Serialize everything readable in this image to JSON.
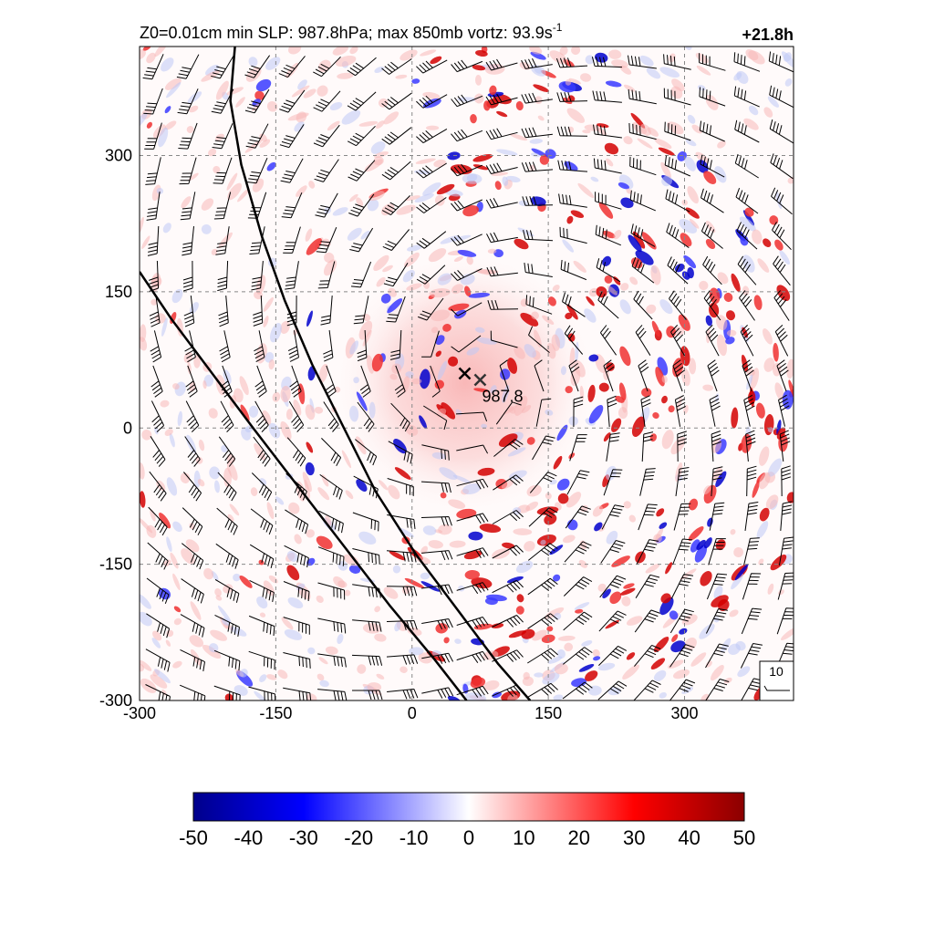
{
  "chart_data": {
    "type": "heatmap",
    "title": "Z0=0.01cm  min SLP: 987.8hPa; max 850mb vortz:  93.9s",
    "title_superscript": "-1",
    "time_label": "+21.8h",
    "xlim": [
      -300,
      420
    ],
    "ylim": [
      -300,
      420
    ],
    "x_ticks": [
      -300,
      -150,
      0,
      150,
      300
    ],
    "y_ticks": [
      -300,
      -150,
      0,
      150,
      300
    ],
    "x_tick_labels": [
      "-300",
      "-150",
      "0",
      "150",
      "300"
    ],
    "y_tick_labels": [
      "-300",
      "-150",
      "0",
      "150",
      "300"
    ],
    "grid": true,
    "grid_style": "dashed",
    "field": {
      "name": "vorticity",
      "colormap": [
        "#00008b",
        "#0000ff",
        "#ffffff",
        "#ff0000",
        "#8b0000"
      ],
      "range": [
        -50,
        50
      ]
    },
    "colorbar": {
      "ticks": [
        -50,
        -40,
        -30,
        -20,
        -10,
        0,
        10,
        20,
        30,
        40,
        50
      ],
      "tick_labels": [
        "-50",
        "-40",
        "-30",
        "-20",
        "-10",
        "0",
        "10",
        "20",
        "30",
        "40",
        "50"
      ]
    },
    "annotations": {
      "slp_label": "987.8",
      "center_markers": [
        {
          "x": 58,
          "y": 60
        },
        {
          "x": 75,
          "y": 53
        }
      ],
      "wind_reference_label": "10"
    },
    "lines": [
      {
        "name": "front-line-1",
        "points": [
          [
            -195,
            420
          ],
          [
            -200,
            360
          ],
          [
            -188,
            290
          ],
          [
            -165,
            210
          ],
          [
            -140,
            140
          ],
          [
            -110,
            70
          ],
          [
            -75,
            0
          ],
          [
            -40,
            -70
          ],
          [
            5,
            -140
          ],
          [
            50,
            -200
          ],
          [
            95,
            -260
          ],
          [
            130,
            -300
          ]
        ]
      },
      {
        "name": "front-line-2",
        "points": [
          [
            -300,
            172
          ],
          [
            -265,
            120
          ],
          [
            -220,
            60
          ],
          [
            -175,
            0
          ],
          [
            -125,
            -65
          ],
          [
            -75,
            -130
          ],
          [
            -25,
            -195
          ],
          [
            25,
            -255
          ],
          [
            60,
            -300
          ]
        ]
      }
    ]
  }
}
